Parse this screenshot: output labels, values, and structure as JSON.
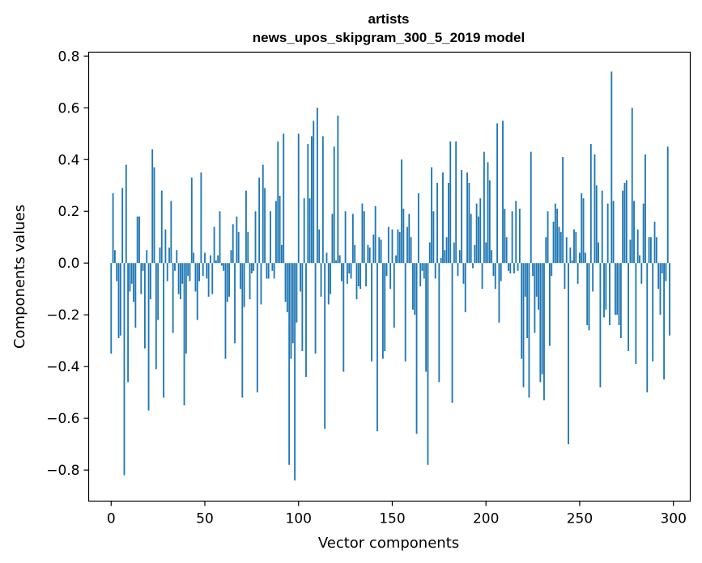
{
  "chart_data": {
    "type": "bar",
    "title_lines": [
      "artists",
      "news_upos_skipgram_300_5_2019 model"
    ],
    "xlabel": "Vector components",
    "ylabel": "Components values",
    "xlim": [
      -12,
      309
    ],
    "ylim": [
      -0.92,
      0.815
    ],
    "x_ticks": [
      0,
      50,
      100,
      150,
      200,
      250,
      300
    ],
    "y_ticks": [
      -0.8,
      -0.6,
      -0.4,
      -0.2,
      0.0,
      0.2,
      0.4,
      0.6,
      0.8
    ],
    "y_tick_labels": [
      "−0.8",
      "−0.6",
      "−0.4",
      "−0.2",
      "0.0",
      "0.2",
      "0.4",
      "0.6",
      "0.8"
    ],
    "bar_color": "#1f77b4",
    "series": [
      {
        "name": "components",
        "values": [
          -0.35,
          0.27,
          0.05,
          -0.07,
          -0.29,
          -0.28,
          0.29,
          -0.82,
          0.38,
          -0.46,
          -0.11,
          -0.08,
          -0.15,
          -0.25,
          0.18,
          0.18,
          -0.12,
          -0.03,
          -0.33,
          0.05,
          -0.57,
          -0.14,
          0.44,
          0.37,
          -0.41,
          -0.22,
          0.06,
          0.28,
          -0.52,
          0.13,
          -0.07,
          0.06,
          0.24,
          -0.27,
          -0.03,
          0.05,
          -0.12,
          -0.14,
          -0.08,
          -0.55,
          -0.35,
          -0.05,
          -0.07,
          0.33,
          0.04,
          -0.11,
          -0.22,
          -0.07,
          0.35,
          -0.05,
          0.04,
          -0.06,
          -0.13,
          0.03,
          -0.12,
          0.14,
          0.01,
          0.03,
          0.2,
          -0.01,
          -0.03,
          -0.37,
          -0.15,
          -0.13,
          0.05,
          0.15,
          -0.31,
          0.18,
          0.12,
          -0.1,
          -0.52,
          -0.17,
          0.28,
          0.12,
          -0.14,
          -0.04,
          -0.03,
          0.2,
          -0.5,
          0.33,
          -0.16,
          0.38,
          0.29,
          -0.06,
          -0.06,
          0.2,
          -0.03,
          -0.06,
          0.24,
          0.47,
          0.26,
          0.07,
          0.5,
          -0.15,
          -0.19,
          -0.78,
          -0.37,
          -0.31,
          -0.84,
          -0.23,
          0.5,
          -0.11,
          -0.34,
          0.25,
          -0.44,
          0.46,
          0.25,
          0.49,
          0.55,
          -0.35,
          0.6,
          0.13,
          -0.13,
          0.49,
          -0.64,
          0.04,
          -0.16,
          -0.12,
          0.19,
          0.45,
          0.01,
          0.57,
          0.03,
          -0.07,
          -0.42,
          0.2,
          -0.08,
          -0.04,
          -0.06,
          0.19,
          0.07,
          -0.14,
          -0.09,
          -0.1,
          0.23,
          0.2,
          -0.09,
          0.07,
          0.06,
          -0.38,
          0.11,
          0.22,
          -0.65,
          0.1,
          0.09,
          -0.37,
          -0.34,
          -0.05,
          0.14,
          -0.1,
          0.13,
          -0.25,
          0.03,
          0.13,
          0.12,
          0.4,
          0.21,
          -0.38,
          0.14,
          0.19,
          0.1,
          -0.18,
          -0.2,
          -0.66,
          0.27,
          -0.09,
          -0.03,
          -0.06,
          -0.42,
          -0.78,
          0.08,
          0.37,
          0.2,
          -0.06,
          0.31,
          -0.46,
          0.02,
          0.35,
          0.05,
          0.1,
          0.31,
          0.47,
          -0.54,
          0.08,
          0.47,
          -0.05,
          0.05,
          0.36,
          -0.08,
          -0.19,
          0.35,
          0.31,
          0.19,
          -0.02,
          0.07,
          0.23,
          0.18,
          0.25,
          -0.1,
          0.43,
          0.08,
          0.39,
          0.32,
          0.05,
          -0.05,
          -0.1,
          0.54,
          -0.23,
          -0.07,
          0.55,
          0.21,
          0.1,
          -0.03,
          -0.04,
          0.2,
          -0.04,
          0.24,
          -0.03,
          0.21,
          -0.37,
          -0.48,
          -0.13,
          -0.29,
          -0.52,
          0.43,
          -0.05,
          -0.27,
          -0.13,
          -0.18,
          -0.46,
          -0.43,
          -0.53,
          0.1,
          0.2,
          -0.32,
          -0.05,
          0.16,
          0.23,
          0.21,
          0.14,
          0.12,
          0.41,
          -0.1,
          0.1,
          -0.7,
          0.06,
          0.01,
          0.13,
          0.12,
          -0.08,
          0.04,
          0.27,
          0.25,
          0.04,
          -0.24,
          -0.26,
          0.46,
          -0.11,
          0.42,
          0.3,
          0.08,
          -0.48,
          0.28,
          -0.21,
          -0.18,
          0.23,
          -0.24,
          0.74,
          0.24,
          -0.2,
          -0.2,
          -0.24,
          -0.29,
          0.28,
          0.31,
          0.32,
          -0.34,
          0.09,
          0.6,
          0.24,
          -0.39,
          0.13,
          0.03,
          -0.08,
          0.23,
          0.42,
          -0.5,
          0.1,
          0.1,
          -0.38,
          0.16,
          0.1,
          -0.1,
          -0.2,
          -0.04,
          -0.45,
          -0.07,
          0.45,
          -0.28
        ]
      }
    ]
  }
}
